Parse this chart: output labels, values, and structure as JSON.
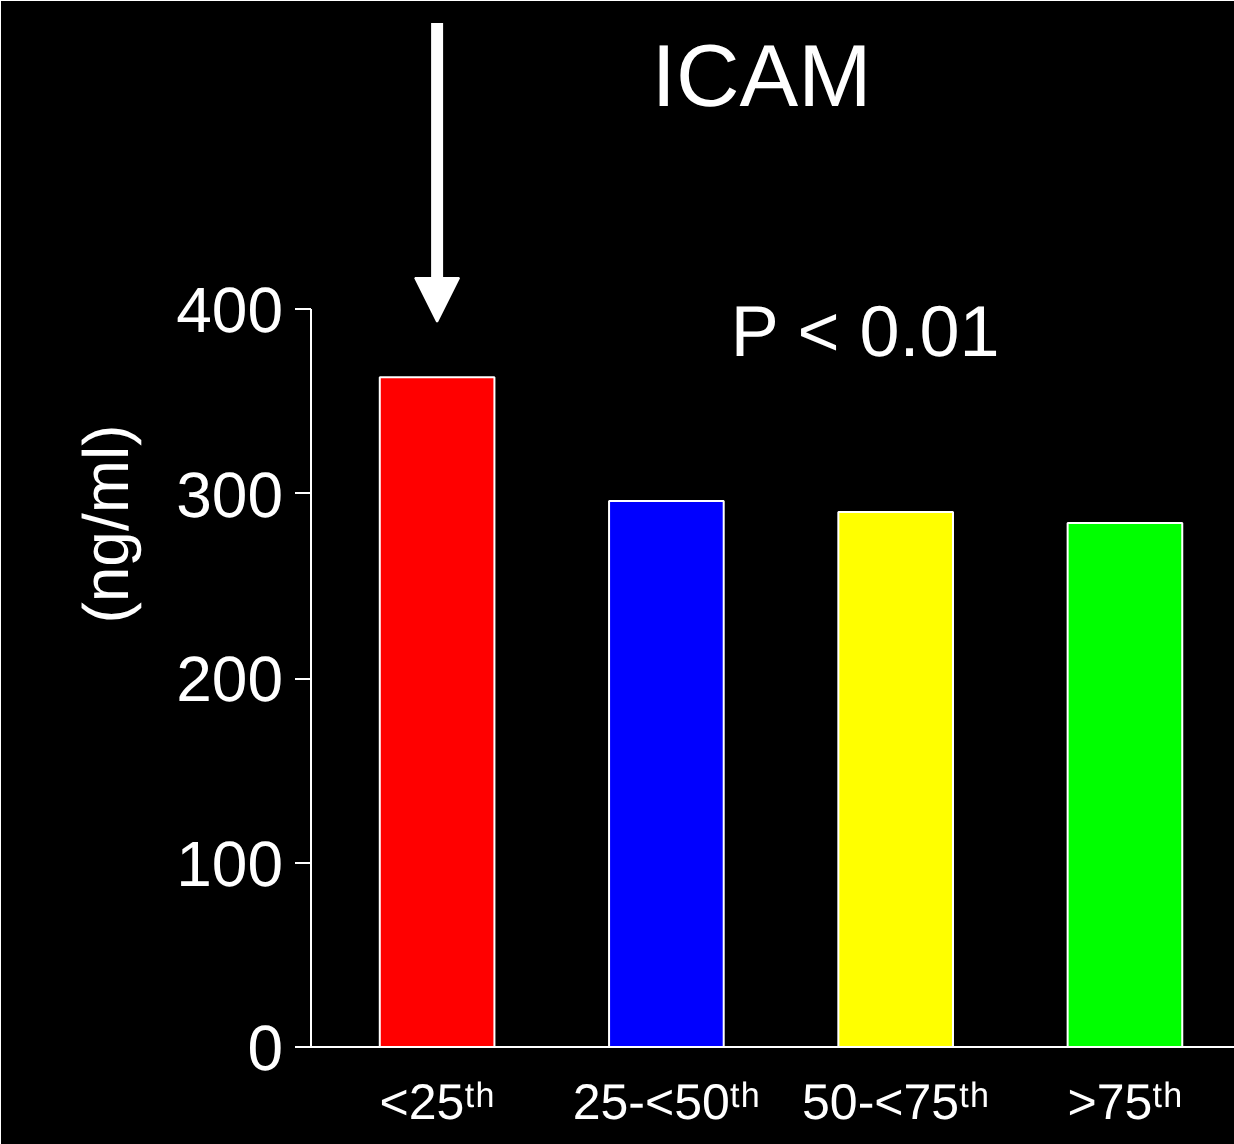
{
  "chart_data": {
    "type": "bar",
    "title": "ICAM",
    "ylabel": "(ng/ml)",
    "categories": [
      "<25ᵗʰ",
      "25-<50ᵗʰ",
      "50-<75ᵗʰ",
      ">75ᵗʰ"
    ],
    "values": [
      363,
      296,
      290,
      284
    ],
    "colors": [
      "#ff0000",
      "#0000ff",
      "#ffff00",
      "#00ff00"
    ],
    "ylim": [
      0,
      400
    ],
    "yticks": [
      0,
      100,
      200,
      300,
      400
    ],
    "grid": false,
    "annotations": [
      "P < 0.01"
    ]
  }
}
